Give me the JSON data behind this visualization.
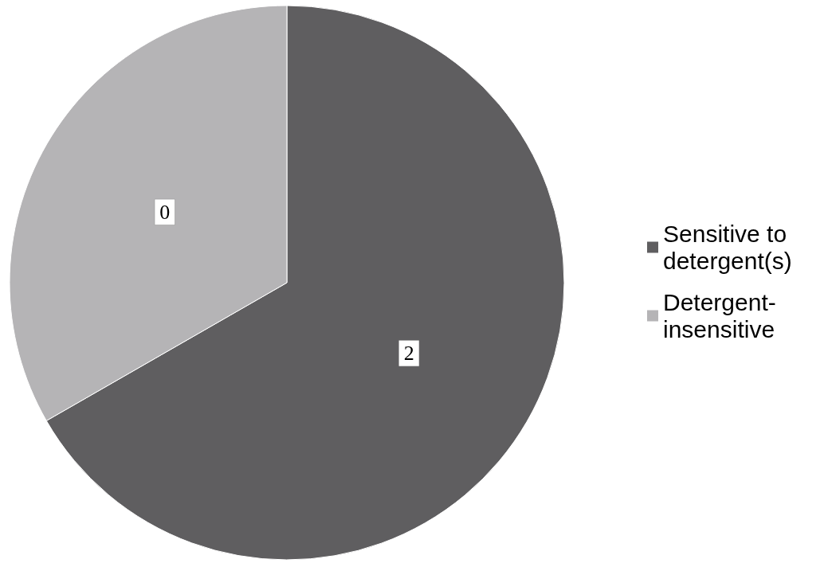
{
  "chart_data": {
    "type": "pie",
    "categories": [
      "Sensitive to detergent(s)",
      "Detergent-insensitive"
    ],
    "values": [
      66.7,
      33.3
    ],
    "annotations": [
      "2",
      "0"
    ],
    "colors": [
      "#5f5e60",
      "#b5b4b6"
    ],
    "legend": "right"
  }
}
